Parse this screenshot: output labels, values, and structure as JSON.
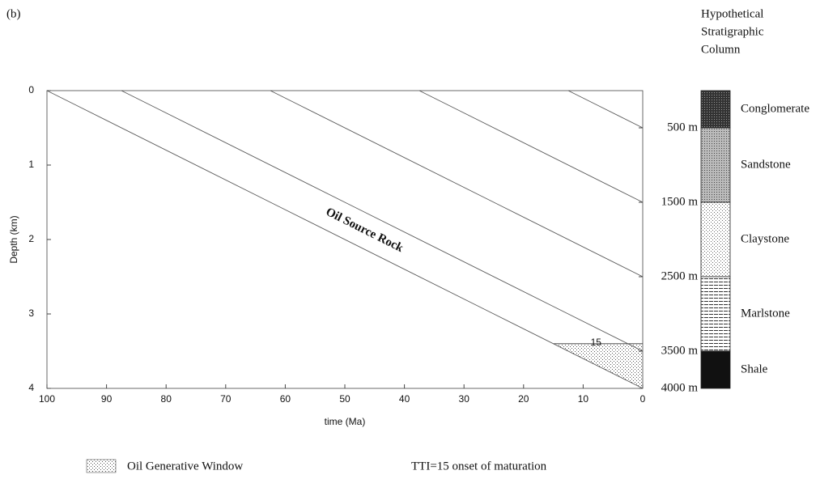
{
  "chart_data": {
    "type": "line",
    "label": "(b)",
    "xlabel": "time (Ma)",
    "ylabel": "Depth (km)",
    "xlim": [
      100,
      0
    ],
    "ylim": [
      4,
      0
    ],
    "xticks": [
      100,
      90,
      80,
      70,
      60,
      50,
      40,
      30,
      20,
      10,
      0
    ],
    "yticks": [
      0,
      1,
      2,
      3,
      4
    ],
    "y2lim": [
      4000,
      0
    ],
    "y2ticks": [
      {
        "value": 500,
        "label": "500 m"
      },
      {
        "value": 1500,
        "label": "1500 m"
      },
      {
        "value": 2500,
        "label": "2500 m"
      },
      {
        "value": 3500,
        "label": "3500 m"
      },
      {
        "value": 4000,
        "label": "4000 m"
      }
    ],
    "series": [
      {
        "color": "#555555",
        "x": [
          100,
          0
        ],
        "values": [
          0,
          4
        ]
      },
      {
        "color": "#555555",
        "x": [
          87.5,
          0
        ],
        "values": [
          0,
          3.5
        ]
      },
      {
        "color": "#555555",
        "x": [
          62.5,
          0
        ],
        "values": [
          0,
          2.5
        ]
      },
      {
        "color": "#555555",
        "x": [
          37.5,
          0
        ],
        "values": [
          0,
          1.5
        ]
      },
      {
        "color": "#555555",
        "x": [
          12.5,
          0
        ],
        "values": [
          0,
          0.5
        ]
      }
    ],
    "annotation": "Oil Source Rock",
    "window": {
      "name": "Oil Generative Window",
      "tti_label": "15",
      "depth": 3.4
    },
    "note": "TTI=15 onset of maturation",
    "column": {
      "title": [
        "Hypothetical",
        "Stratigraphic",
        "Column"
      ],
      "layers": [
        {
          "name": "Conglomerate",
          "top": 0,
          "bottom": 500
        },
        {
          "name": "Sandstone",
          "top": 500,
          "bottom": 1500
        },
        {
          "name": "Claystone",
          "top": 1500,
          "bottom": 2500
        },
        {
          "name": "Marlstone",
          "top": 2500,
          "bottom": 3500
        },
        {
          "name": "Shale",
          "top": 3500,
          "bottom": 4000
        }
      ]
    }
  }
}
